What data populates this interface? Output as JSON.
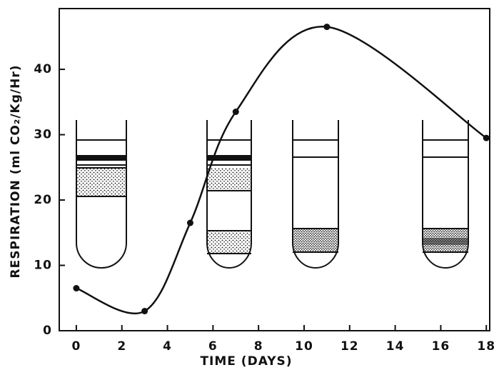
{
  "chart_data": {
    "type": "line",
    "x_label": "TIME (DAYS)",
    "y_label": "RESPIRATION (ml CO₂/Kg/Hr)",
    "x": [
      0,
      3,
      5,
      7,
      11,
      18
    ],
    "series": [
      {
        "values": [
          6.5,
          3,
          16.5,
          33.5,
          46.5,
          29.5
        ],
        "color": "#111111"
      }
    ],
    "xlim": [
      -0.75,
      18.15
    ],
    "ylim": [
      0,
      49.3
    ],
    "xticks": [
      0,
      2,
      4,
      6,
      8,
      10,
      12,
      14,
      16,
      18
    ],
    "yticks": [
      0,
      10,
      20,
      30,
      40
    ],
    "smooth": true,
    "grid": false
  }
}
